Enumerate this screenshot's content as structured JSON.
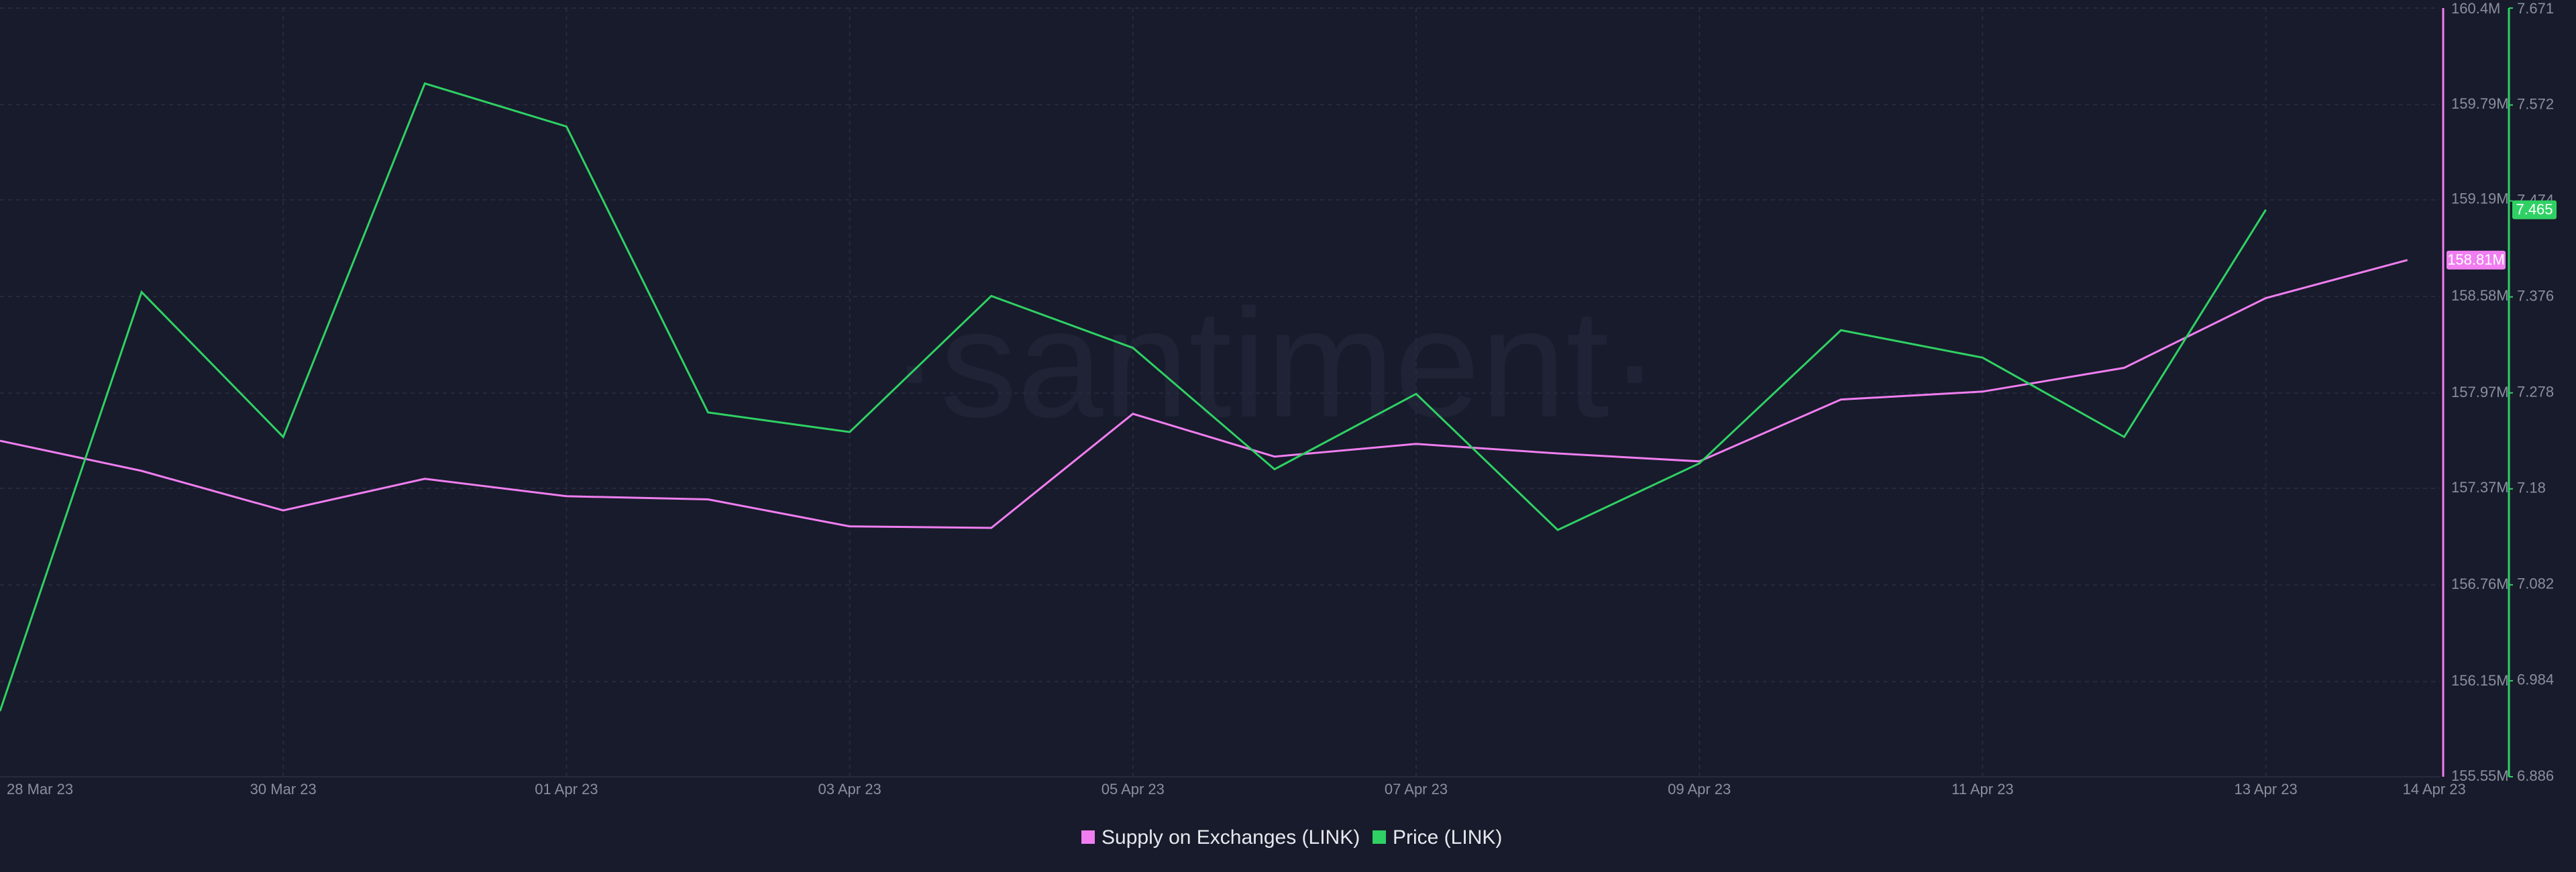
{
  "chart_data": {
    "type": "line",
    "watermark": "·santiment·",
    "categories": [
      "28 Mar 23",
      null,
      "30 Mar 23",
      null,
      "01 Apr 23",
      null,
      "03 Apr 23",
      null,
      "05 Apr 23",
      null,
      "07 Apr 23",
      null,
      "09 Apr 23",
      null,
      "11 Apr 23",
      null,
      "13 Apr 23",
      "14 Apr 23"
    ],
    "series": [
      {
        "name": "Supply on Exchanges (LINK)",
        "color": "#f07ef0",
        "values": [
          157.67,
          157.48,
          157.23,
          157.43,
          157.32,
          157.3,
          157.13,
          157.12,
          157.84,
          157.57,
          157.65,
          157.59,
          157.54,
          157.93,
          157.98,
          158.13,
          158.57,
          158.81
        ],
        "value_labels": [
          null,
          null,
          null,
          null,
          null,
          null,
          null,
          null,
          null,
          null,
          null,
          null,
          null,
          null,
          null,
          null,
          null,
          "158.81M"
        ]
      },
      {
        "name": "Price (LINK)",
        "color": "#2fd164",
        "axis": "y2",
        "values": [
          6.953,
          7.381,
          7.233,
          7.594,
          7.55,
          7.258,
          7.238,
          7.377,
          7.324,
          7.2,
          7.277,
          7.138,
          7.206,
          7.342,
          7.314,
          7.233,
          7.465,
          null
        ],
        "value_labels": [
          null,
          null,
          null,
          null,
          null,
          null,
          null,
          null,
          null,
          null,
          null,
          null,
          null,
          null,
          null,
          null,
          "7.465",
          null
        ]
      }
    ],
    "ylim": [
      155.55,
      160.4
    ],
    "yticks": [
      {
        "value": 155.55,
        "label": "155.55M"
      },
      {
        "value": 156.15,
        "label": "156.15M"
      },
      {
        "value": 156.76,
        "label": "156.76M"
      },
      {
        "value": 157.37,
        "label": "157.37M"
      },
      {
        "value": 157.97,
        "label": "157.97M"
      },
      {
        "value": 158.58,
        "label": "158.58M"
      },
      {
        "value": 159.19,
        "label": "159.19M"
      },
      {
        "value": 159.79,
        "label": "159.79M"
      },
      {
        "value": 160.4,
        "label": "160.4M"
      }
    ],
    "y2lim": [
      6.886,
      7.671
    ],
    "y2ticks": [
      6.886,
      6.984,
      7.082,
      7.18,
      7.278,
      7.376,
      7.474,
      7.572,
      7.671
    ],
    "grid": true,
    "legend": "bottom"
  }
}
